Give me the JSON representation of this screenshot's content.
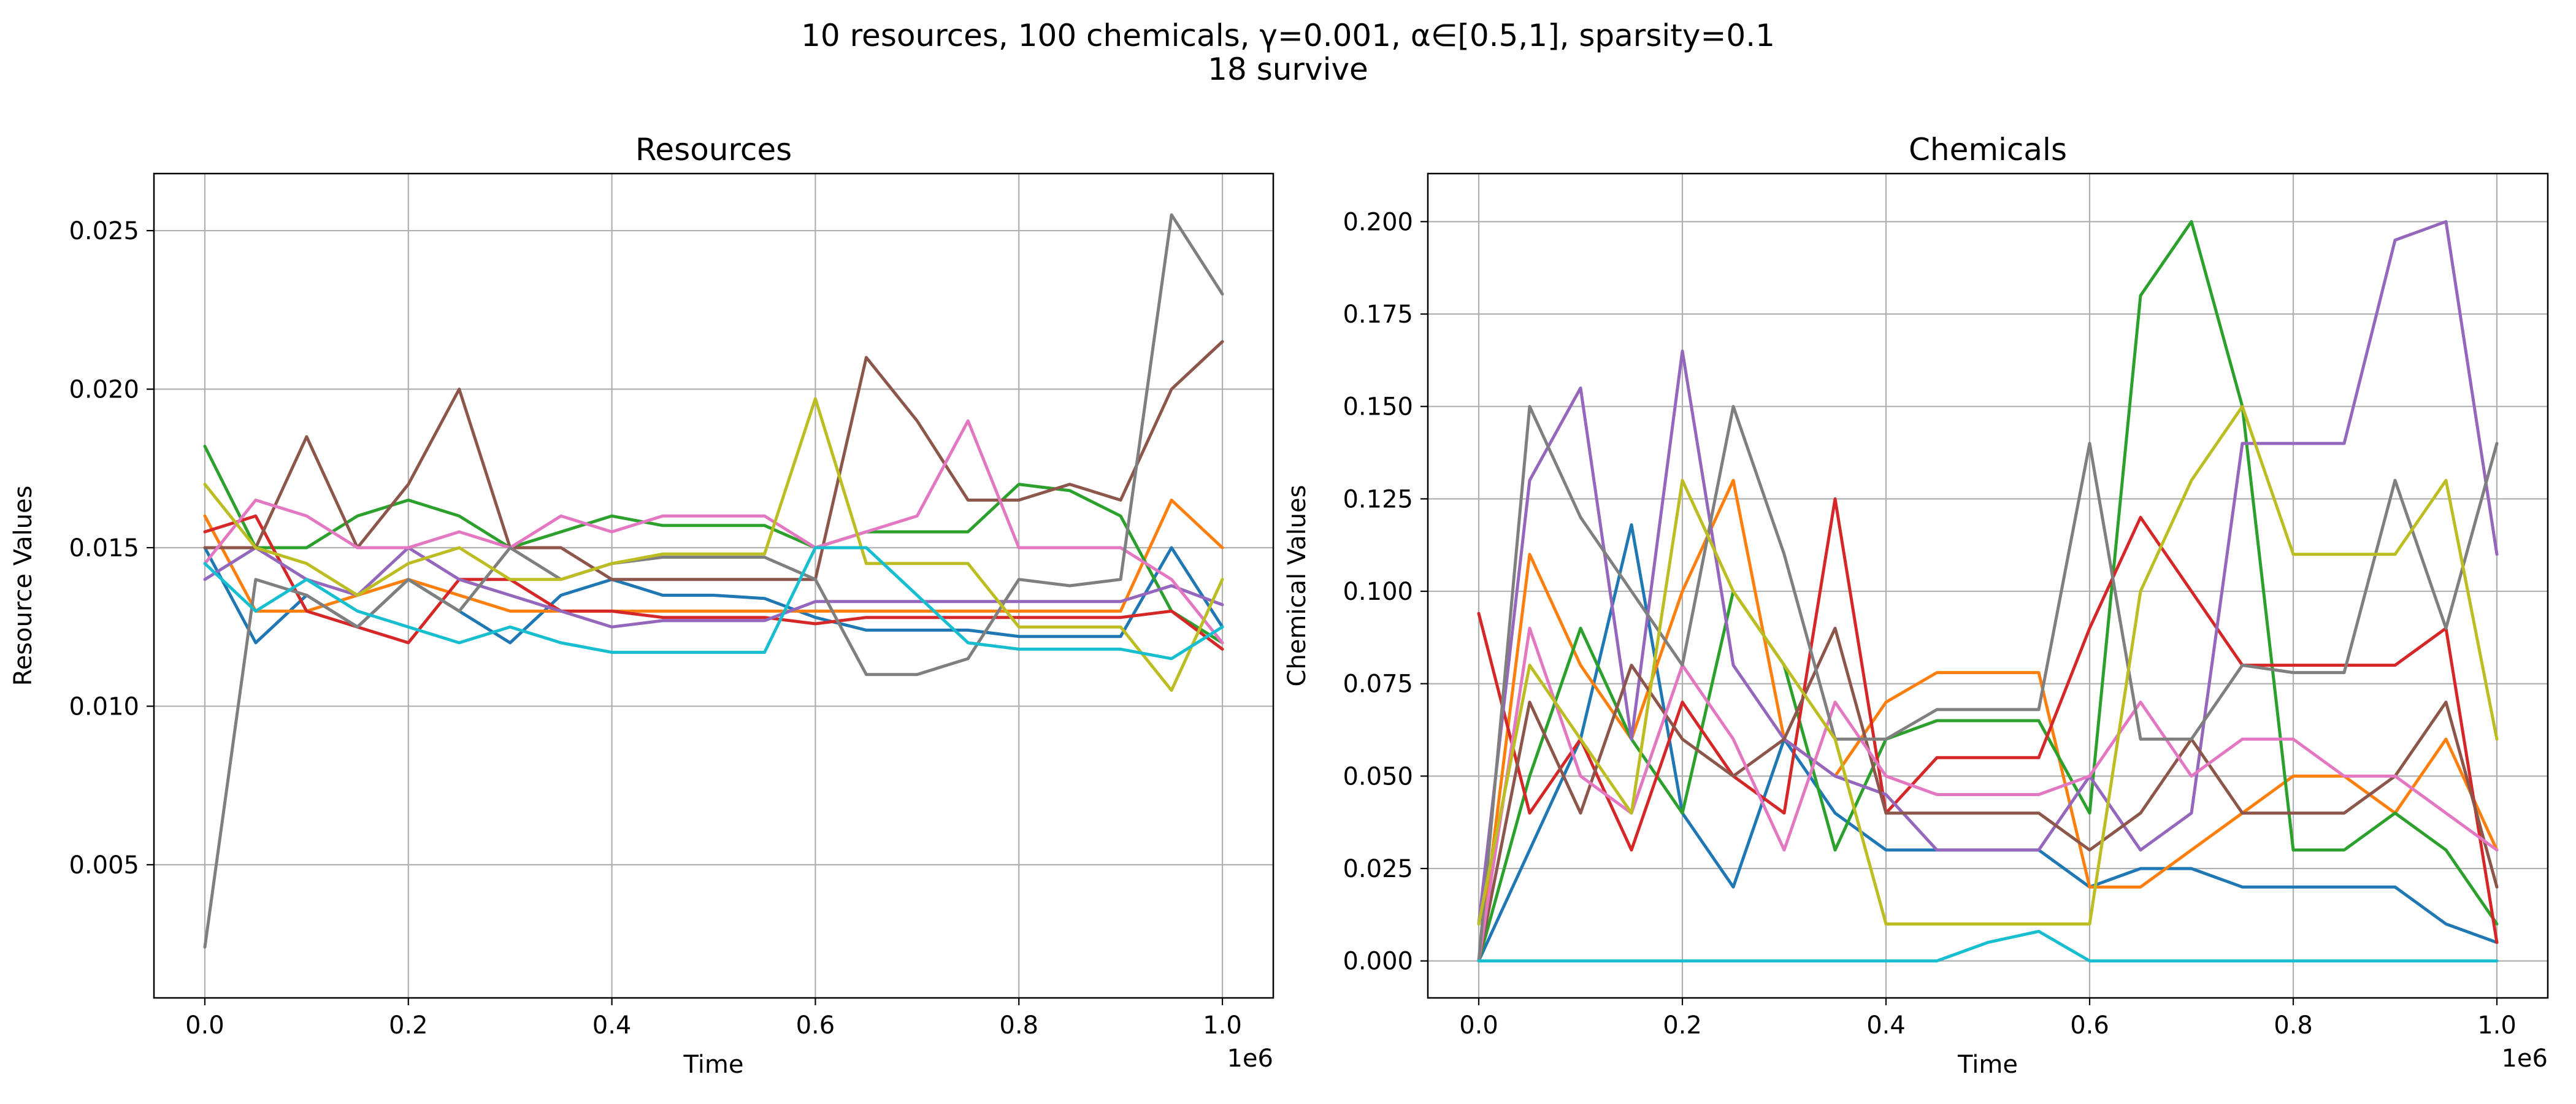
{
  "figure": {
    "suptitle_line1": "10 resources, 100 chemicals, γ=0.001, α∈[0.5,1], sparsity=0.1",
    "suptitle_line2": "18 survive"
  },
  "palette": [
    "#1f77b4",
    "#ff7f0e",
    "#2ca02c",
    "#d62728",
    "#9467bd",
    "#8c564b",
    "#e377c2",
    "#7f7f7f",
    "#bcbd22",
    "#17becf"
  ],
  "chart_data": [
    {
      "type": "line",
      "title": "Resources",
      "xlabel": "Time",
      "ylabel": "Resource Values",
      "x_offset_text": "1e6",
      "xlim": [
        -0.05,
        1.05
      ],
      "ylim": [
        0.0008,
        0.0268
      ],
      "xticks": [
        0.0,
        0.2,
        0.4,
        0.6,
        0.8,
        1.0
      ],
      "xtick_labels": [
        "0.0",
        "0.2",
        "0.4",
        "0.6",
        "0.8",
        "1.0"
      ],
      "yticks": [
        0.005,
        0.01,
        0.015,
        0.02,
        0.025
      ],
      "ytick_labels": [
        "0.005",
        "0.010",
        "0.015",
        "0.020",
        "0.025"
      ],
      "grid": true,
      "x": [
        0.0,
        0.05,
        0.1,
        0.15,
        0.2,
        0.25,
        0.3,
        0.35,
        0.4,
        0.45,
        0.5,
        0.55,
        0.6,
        0.65,
        0.7,
        0.75,
        0.8,
        0.85,
        0.9,
        0.95,
        1.0
      ],
      "series": [
        {
          "values": [
            0.015,
            0.012,
            0.0135,
            0.0125,
            0.014,
            0.013,
            0.012,
            0.0135,
            0.014,
            0.0135,
            0.0135,
            0.0134,
            0.0128,
            0.0124,
            0.0124,
            0.0124,
            0.0122,
            0.0122,
            0.0122,
            0.015,
            0.0125
          ]
        },
        {
          "values": [
            0.016,
            0.013,
            0.013,
            0.0135,
            0.014,
            0.0135,
            0.013,
            0.013,
            0.013,
            0.013,
            0.013,
            0.013,
            0.013,
            0.013,
            0.013,
            0.013,
            0.013,
            0.013,
            0.013,
            0.0165,
            0.015
          ]
        },
        {
          "values": [
            0.0182,
            0.015,
            0.015,
            0.016,
            0.0165,
            0.016,
            0.015,
            0.0155,
            0.016,
            0.0157,
            0.0157,
            0.0157,
            0.015,
            0.0155,
            0.0155,
            0.0155,
            0.017,
            0.0168,
            0.016,
            0.013,
            0.012
          ]
        },
        {
          "values": [
            0.0155,
            0.016,
            0.013,
            0.0125,
            0.012,
            0.014,
            0.014,
            0.013,
            0.013,
            0.0128,
            0.0128,
            0.0128,
            0.0126,
            0.0128,
            0.0128,
            0.0128,
            0.0128,
            0.0128,
            0.0128,
            0.013,
            0.0118
          ]
        },
        {
          "values": [
            0.014,
            0.015,
            0.014,
            0.0135,
            0.015,
            0.014,
            0.0135,
            0.013,
            0.0125,
            0.0127,
            0.0127,
            0.0127,
            0.0133,
            0.0133,
            0.0133,
            0.0133,
            0.0133,
            0.0133,
            0.0133,
            0.0138,
            0.0132
          ]
        },
        {
          "values": [
            0.015,
            0.015,
            0.0185,
            0.015,
            0.017,
            0.02,
            0.015,
            0.015,
            0.014,
            0.014,
            0.014,
            0.014,
            0.014,
            0.021,
            0.019,
            0.0165,
            0.0165,
            0.017,
            0.0165,
            0.02,
            0.0215
          ]
        },
        {
          "values": [
            0.0145,
            0.0165,
            0.016,
            0.015,
            0.015,
            0.0155,
            0.015,
            0.016,
            0.0155,
            0.016,
            0.016,
            0.016,
            0.015,
            0.0155,
            0.016,
            0.019,
            0.015,
            0.015,
            0.015,
            0.014,
            0.012
          ]
        },
        {
          "values": [
            0.0024,
            0.014,
            0.0135,
            0.0125,
            0.014,
            0.013,
            0.015,
            0.014,
            0.0145,
            0.0147,
            0.0147,
            0.0147,
            0.014,
            0.011,
            0.011,
            0.0115,
            0.014,
            0.0138,
            0.014,
            0.0255,
            0.023
          ]
        },
        {
          "values": [
            0.017,
            0.015,
            0.0145,
            0.0135,
            0.0145,
            0.015,
            0.014,
            0.014,
            0.0145,
            0.0148,
            0.0148,
            0.0148,
            0.0197,
            0.0145,
            0.0145,
            0.0145,
            0.0125,
            0.0125,
            0.0125,
            0.0105,
            0.014
          ]
        },
        {
          "values": [
            0.0145,
            0.013,
            0.014,
            0.013,
            0.0125,
            0.012,
            0.0125,
            0.012,
            0.0117,
            0.0117,
            0.0117,
            0.0117,
            0.015,
            0.015,
            0.0135,
            0.012,
            0.0118,
            0.0118,
            0.0118,
            0.0115,
            0.0125
          ]
        }
      ]
    },
    {
      "type": "line",
      "title": "Chemicals",
      "xlabel": "Time",
      "ylabel": "Chemical Values",
      "x_offset_text": "1e6",
      "xlim": [
        -0.05,
        1.05
      ],
      "ylim": [
        -0.01,
        0.213
      ],
      "xticks": [
        0.0,
        0.2,
        0.4,
        0.6,
        0.8,
        1.0
      ],
      "xtick_labels": [
        "0.0",
        "0.2",
        "0.4",
        "0.6",
        "0.8",
        "1.0"
      ],
      "yticks": [
        0.0,
        0.025,
        0.05,
        0.075,
        0.1,
        0.125,
        0.15,
        0.175,
        0.2
      ],
      "ytick_labels": [
        "0.000",
        "0.025",
        "0.050",
        "0.075",
        "0.100",
        "0.125",
        "0.150",
        "0.175",
        "0.200"
      ],
      "grid": true,
      "x": [
        0.0,
        0.05,
        0.1,
        0.15,
        0.2,
        0.25,
        0.3,
        0.35,
        0.4,
        0.45,
        0.5,
        0.55,
        0.6,
        0.65,
        0.7,
        0.75,
        0.8,
        0.85,
        0.9,
        0.95,
        1.0
      ],
      "series": [
        {
          "values": [
            0.0,
            0.03,
            0.06,
            0.118,
            0.04,
            0.02,
            0.06,
            0.04,
            0.03,
            0.03,
            0.03,
            0.03,
            0.02,
            0.025,
            0.025,
            0.02,
            0.02,
            0.02,
            0.02,
            0.01,
            0.005
          ]
        },
        {
          "values": [
            0.0,
            0.11,
            0.08,
            0.06,
            0.1,
            0.13,
            0.06,
            0.05,
            0.07,
            0.078,
            0.078,
            0.078,
            0.02,
            0.02,
            0.03,
            0.04,
            0.05,
            0.05,
            0.04,
            0.06,
            0.03
          ]
        },
        {
          "values": [
            0.0,
            0.05,
            0.09,
            0.06,
            0.04,
            0.1,
            0.08,
            0.03,
            0.06,
            0.065,
            0.065,
            0.065,
            0.04,
            0.18,
            0.2,
            0.15,
            0.03,
            0.03,
            0.04,
            0.03,
            0.01
          ]
        },
        {
          "values": [
            0.094,
            0.04,
            0.06,
            0.03,
            0.07,
            0.05,
            0.04,
            0.125,
            0.04,
            0.055,
            0.055,
            0.055,
            0.09,
            0.12,
            0.1,
            0.08,
            0.08,
            0.08,
            0.08,
            0.09,
            0.005
          ]
        },
        {
          "values": [
            0.01,
            0.13,
            0.155,
            0.06,
            0.165,
            0.08,
            0.06,
            0.05,
            0.045,
            0.03,
            0.03,
            0.03,
            0.05,
            0.03,
            0.04,
            0.14,
            0.14,
            0.14,
            0.195,
            0.2,
            0.11
          ]
        },
        {
          "values": [
            0.0,
            0.07,
            0.04,
            0.08,
            0.06,
            0.05,
            0.06,
            0.09,
            0.04,
            0.04,
            0.04,
            0.04,
            0.03,
            0.04,
            0.06,
            0.04,
            0.04,
            0.04,
            0.05,
            0.07,
            0.02
          ]
        },
        {
          "values": [
            0.0,
            0.09,
            0.05,
            0.04,
            0.08,
            0.06,
            0.03,
            0.07,
            0.05,
            0.045,
            0.045,
            0.045,
            0.05,
            0.07,
            0.05,
            0.06,
            0.06,
            0.05,
            0.05,
            0.04,
            0.03
          ]
        },
        {
          "values": [
            0.0,
            0.15,
            0.12,
            0.1,
            0.08,
            0.15,
            0.11,
            0.06,
            0.06,
            0.068,
            0.068,
            0.068,
            0.14,
            0.06,
            0.06,
            0.08,
            0.078,
            0.078,
            0.13,
            0.09,
            0.14
          ]
        },
        {
          "values": [
            0.01,
            0.08,
            0.06,
            0.04,
            0.13,
            0.1,
            0.08,
            0.06,
            0.01,
            0.01,
            0.01,
            0.01,
            0.01,
            0.1,
            0.13,
            0.15,
            0.11,
            0.11,
            0.11,
            0.13,
            0.06
          ]
        },
        {
          "values": [
            0.0,
            0.0,
            0.0,
            0.0,
            0.0,
            0.0,
            0.0,
            0.0,
            0.0,
            0.0,
            0.005,
            0.008,
            0.0,
            0.0,
            0.0,
            0.0,
            0.0,
            0.0,
            0.0,
            0.0,
            0.0
          ]
        }
      ]
    }
  ]
}
